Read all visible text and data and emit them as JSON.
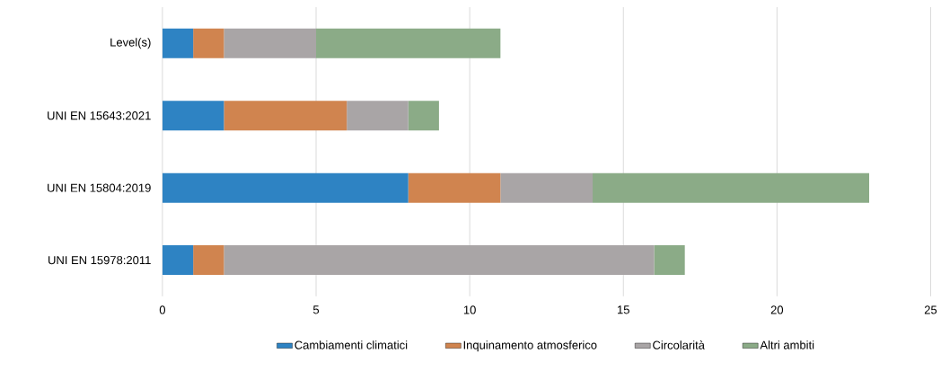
{
  "chart_data": {
    "type": "bar",
    "orientation": "horizontal",
    "stacked": true,
    "categories": [
      "Level(s)",
      "UNI EN 15643:2021",
      "UNI EN 15804:2019",
      "UNI EN 15978:2011"
    ],
    "series": [
      {
        "name": "Cambiamenti climatici",
        "color": "#2e83c3",
        "values": [
          1,
          2,
          8,
          1
        ]
      },
      {
        "name": "Inquinamento atmosferico",
        "color": "#d0844f",
        "values": [
          1,
          4,
          3,
          1
        ]
      },
      {
        "name": "Circolarità",
        "color": "#a9a5a6",
        "values": [
          3,
          2,
          3,
          14
        ]
      },
      {
        "name": "Altri ambiti",
        "color": "#8bab87",
        "values": [
          6,
          1,
          9,
          1
        ]
      }
    ],
    "xlim": [
      0,
      25
    ],
    "xticks": [
      0,
      5,
      10,
      15,
      20,
      25
    ],
    "grid": "x",
    "legend": "bottom"
  }
}
